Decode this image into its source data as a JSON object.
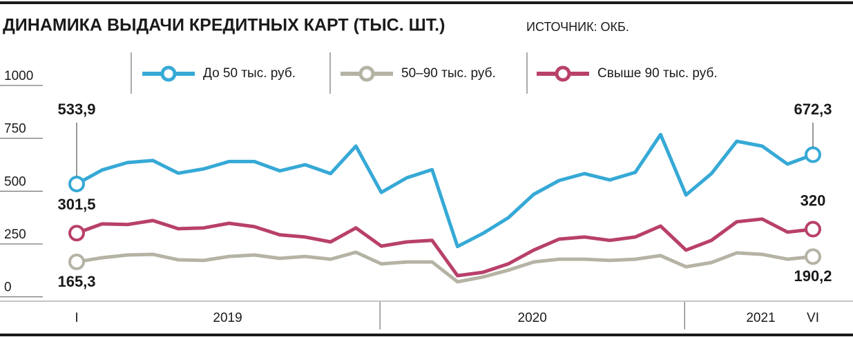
{
  "chart_data": {
    "type": "line",
    "title": "ДИНАМИКА ВЫДАЧИ КРЕДИТНЫХ КАРТ (ТЫС. ШТ.)",
    "source": "ИСТОЧНИК: ОКБ.",
    "categories": [
      "I",
      null,
      null,
      null,
      null,
      null,
      null,
      null,
      null,
      null,
      null,
      null,
      null,
      null,
      null,
      null,
      null,
      null,
      null,
      null,
      null,
      null,
      null,
      null,
      null,
      null,
      null,
      null,
      null,
      "VI"
    ],
    "year_groups": [
      {
        "label": "2019",
        "months": 12
      },
      {
        "label": "2020",
        "months": 12
      },
      {
        "label": "2021",
        "months": 6
      }
    ],
    "ylim": [
      0,
      1000
    ],
    "yticks": [
      0,
      250,
      500,
      750,
      1000
    ],
    "series": [
      {
        "name": "До 50 тыс. руб.",
        "color": "#36a9d6",
        "values": [
          533.9,
          600,
          635,
          645,
          585,
          605,
          640,
          640,
          596,
          625,
          583,
          713,
          494,
          563,
          602,
          238,
          300,
          374,
          485,
          550,
          583,
          553,
          589,
          768,
          482,
          583,
          736,
          713,
          628,
          672.3
        ],
        "value_labels": [
          "533,9",
          null,
          null,
          null,
          null,
          null,
          null,
          null,
          null,
          null,
          null,
          null,
          null,
          null,
          null,
          null,
          null,
          null,
          null,
          null,
          null,
          null,
          null,
          null,
          null,
          null,
          null,
          null,
          null,
          "672,3"
        ]
      },
      {
        "name": "50–90 тыс. руб.",
        "color": "#b5b3a4",
        "values": [
          165.3,
          185,
          198,
          201,
          175,
          172,
          191,
          198,
          182,
          191,
          178,
          211,
          156,
          165,
          165,
          71,
          94,
          126,
          165,
          178,
          178,
          172,
          178,
          195,
          142,
          162,
          208,
          201,
          178,
          190.2
        ],
        "value_labels": [
          "165,3",
          null,
          null,
          null,
          null,
          null,
          null,
          null,
          null,
          null,
          null,
          null,
          null,
          null,
          null,
          null,
          null,
          null,
          null,
          null,
          null,
          null,
          null,
          null,
          null,
          null,
          null,
          null,
          null,
          "190,2"
        ]
      },
      {
        "name": "Свыше 90 тыс. руб.",
        "color": "#b8406a",
        "values": [
          301.5,
          345,
          342,
          361,
          322,
          326,
          348,
          332,
          293,
          283,
          260,
          326,
          240,
          260,
          267,
          100,
          116,
          156,
          221,
          273,
          283,
          267,
          283,
          335,
          221,
          267,
          355,
          368,
          306,
          320
        ],
        "value_labels": [
          "301,5",
          null,
          null,
          null,
          null,
          null,
          null,
          null,
          null,
          null,
          null,
          null,
          null,
          null,
          null,
          null,
          null,
          null,
          null,
          null,
          null,
          null,
          null,
          null,
          null,
          null,
          null,
          null,
          null,
          "320"
        ]
      }
    ]
  }
}
